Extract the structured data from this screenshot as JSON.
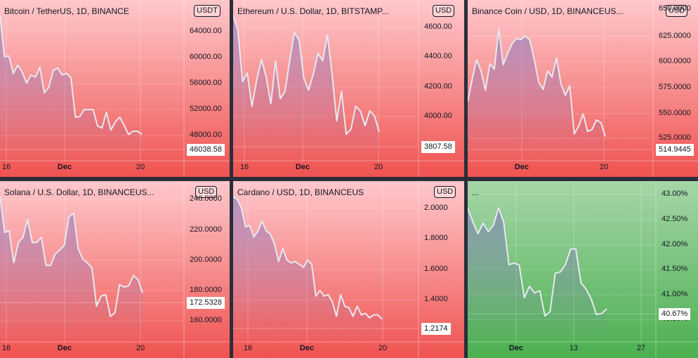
{
  "colors": {
    "red_top": "#ffc8cc",
    "red_bottom": "#ef5350",
    "green_top": "#a5d6a7",
    "green_bottom": "#4caf50",
    "line": "#e6e9f0",
    "fill": "#7e6fc0",
    "divider": "#2a2e39"
  },
  "panels": [
    {
      "title": "Bitcoin / TetherUS, 1D, BINANCE",
      "currency": "USDT",
      "y_labels": [
        "64000.00",
        "60000.00",
        "56000.00",
        "52000.00",
        "48000.00"
      ],
      "last_value": "46038.58",
      "x_labels": [
        "16",
        "Dec",
        "20"
      ]
    },
    {
      "title": "Ethereum / U.S. Dollar, 1D, BITSTAMP...",
      "currency": "USD",
      "y_labels": [
        "4600.00",
        "4400.00",
        "4200.00",
        "4000.00"
      ],
      "last_value": "3807.58",
      "x_labels": [
        "16",
        "Dec",
        "20"
      ]
    },
    {
      "title": "Binance Coin / USD, 1D, BINANCEUS...",
      "currency": "USD",
      "y_labels": [
        "650.0000",
        "625.0000",
        "600.0000",
        "575.0000",
        "550.0000",
        "525.0000"
      ],
      "last_value": "514.9445",
      "x_labels": [
        "Dec",
        "20"
      ]
    },
    {
      "title": "Solana / U.S. Dollar, 1D, BINANCEUS...",
      "currency": "USD",
      "y_labels": [
        "240.0000",
        "220.0000",
        "200.0000",
        "180.0000",
        "160.0000"
      ],
      "last_value": "172.5328",
      "x_labels": [
        "16",
        "Dec",
        "20"
      ]
    },
    {
      "title": "Cardano / USD, 1D, BINANCEUS",
      "currency": "USD",
      "y_labels": [
        "2.0000",
        "1.8000",
        "1.6000",
        "1.4000"
      ],
      "last_value": "1.2174",
      "x_labels": [
        "16",
        "Dec",
        "20"
      ]
    },
    {
      "title": "...",
      "currency": "",
      "y_labels": [
        "43.00%",
        "42.50%",
        "42.00%",
        "41.50%",
        "41.00%",
        "40.50%"
      ],
      "last_value": "40.67%",
      "x_labels": [
        "Dec",
        "13",
        "27"
      ]
    }
  ],
  "chart_data": [
    {
      "type": "area",
      "title": "Bitcoin / TetherUS, 1D, BINANCE",
      "ylim": [
        44000,
        68000
      ],
      "values": [
        68000,
        60400,
        60500,
        57300,
        58800,
        57500,
        55500,
        57000,
        56600,
        58400,
        53700,
        54700,
        57800,
        58300,
        57000,
        57300,
        56500,
        49200,
        49300,
        50600,
        50600,
        50600,
        47600,
        47200,
        50100,
        46800,
        48300,
        49200,
        47700,
        46000,
        46600,
        46600,
        46038.58
      ]
    },
    {
      "type": "area",
      "title": "Ethereum / U.S. Dollar, 1D, BITSTAMP...",
      "ylim": [
        3700,
        4760
      ],
      "values": [
        4760,
        4640,
        4220,
        4290,
        4020,
        4230,
        4400,
        4260,
        4040,
        4390,
        4080,
        4140,
        4390,
        4620,
        4560,
        4250,
        4150,
        4280,
        4450,
        4390,
        4600,
        4280,
        3900,
        4140,
        3790,
        3830,
        4020,
        3980,
        3860,
        3980,
        3940,
        3807.58
      ]
    },
    {
      "type": "area",
      "title": "Binance Coin / USD, 1D, BINANCEUS...",
      "ylim": [
        505,
        655
      ],
      "values": [
        555,
        580,
        603,
        590,
        568,
        598,
        592,
        638,
        597,
        610,
        621,
        627,
        626,
        630,
        625,
        603,
        577,
        569,
        590,
        583,
        605,
        575,
        562,
        573,
        518,
        527,
        541,
        521,
        523,
        534,
        531,
        514.9445
      ]
    },
    {
      "type": "area",
      "title": "Solana / U.S. Dollar, 1D, BINANCEUS...",
      "ylim": [
        150,
        248
      ],
      "values": [
        248,
        220,
        221,
        196,
        212,
        216,
        230,
        212,
        212,
        216,
        194,
        194,
        203,
        206,
        210,
        232,
        235,
        207,
        199,
        196,
        192,
        162,
        170,
        171,
        154,
        157,
        179,
        177,
        178,
        186,
        183,
        172.5328
      ]
    },
    {
      "type": "area",
      "title": "Cardano / USD, 1D, BINANCEUS",
      "ylim": [
        1.17,
        2.07
      ],
      "values": [
        2.07,
        2.05,
        1.99,
        1.86,
        1.87,
        1.79,
        1.83,
        1.9,
        1.83,
        1.81,
        1.74,
        1.62,
        1.71,
        1.63,
        1.61,
        1.62,
        1.6,
        1.58,
        1.63,
        1.6,
        1.38,
        1.42,
        1.38,
        1.39,
        1.34,
        1.24,
        1.39,
        1.31,
        1.3,
        1.24,
        1.31,
        1.25,
        1.26,
        1.23,
        1.25,
        1.25,
        1.22
      ]
    },
    {
      "type": "area",
      "title": "...",
      "ylim": [
        40.4,
        43.1
      ],
      "values": [
        42.82,
        42.53,
        42.28,
        42.5,
        42.32,
        42.46,
        42.83,
        42.52,
        41.61,
        41.65,
        41.61,
        40.91,
        41.15,
        41.01,
        41.06,
        40.52,
        40.61,
        41.43,
        41.46,
        41.62,
        41.95,
        41.95,
        41.23,
        41.09,
        40.88,
        40.55,
        40.57,
        40.67
      ]
    }
  ]
}
